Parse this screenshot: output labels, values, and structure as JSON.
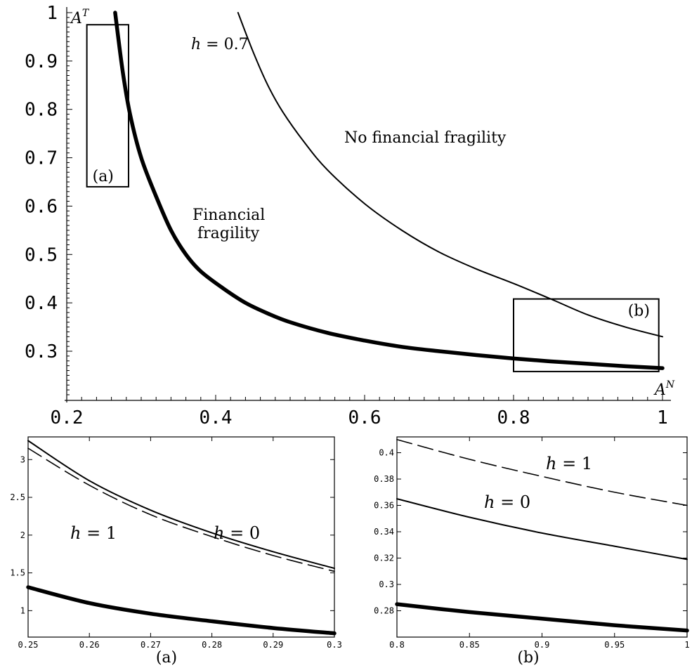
{
  "chart_data": [
    {
      "id": "main",
      "type": "line",
      "xlabel": "A^N",
      "ylabel": "A^T",
      "xlim": [
        0.2,
        1
      ],
      "ylim": [
        0.2,
        1
      ],
      "xticks": [
        0.2,
        0.4,
        0.6,
        0.8,
        1
      ],
      "xtick_labels": [
        "0.2",
        "0.4",
        "0.6",
        "0.8",
        "1"
      ],
      "yticks": [
        0.3,
        0.4,
        0.5,
        0.6,
        0.7,
        0.8,
        0.9,
        1
      ],
      "ytick_labels": [
        "0.3",
        "0.4",
        "0.5",
        "0.6",
        "0.7",
        "0.8",
        "0.9",
        "1"
      ],
      "series": [
        {
          "style": "thick",
          "x": [
            0.265,
            0.275,
            0.285,
            0.3,
            0.32,
            0.34,
            0.36,
            0.38,
            0.41,
            0.44,
            0.47,
            0.5,
            0.55,
            0.6,
            0.65,
            0.7,
            0.75,
            0.8,
            0.85,
            0.9,
            0.95,
            1.0
          ],
          "y": [
            1.0,
            0.88,
            0.79,
            0.7,
            0.62,
            0.55,
            0.5,
            0.465,
            0.43,
            0.4,
            0.378,
            0.36,
            0.338,
            0.322,
            0.309,
            0.3,
            0.292,
            0.285,
            0.279,
            0.274,
            0.269,
            0.265
          ]
        },
        {
          "style": "thin",
          "x": [
            0.43,
            0.45,
            0.47,
            0.49,
            0.52,
            0.55,
            0.6,
            0.65,
            0.7,
            0.75,
            0.8,
            0.85,
            0.9,
            0.95,
            1.0
          ],
          "y": [
            1.0,
            0.92,
            0.85,
            0.795,
            0.73,
            0.675,
            0.605,
            0.55,
            0.505,
            0.47,
            0.44,
            0.408,
            0.375,
            0.35,
            0.33
          ]
        }
      ],
      "annotations": [
        "h = 0.7",
        "No financial fragility",
        "Financial",
        "fragility"
      ],
      "boxes": [
        {
          "label": "(a)",
          "x": [
            0.227,
            0.283
          ],
          "y": [
            0.64,
            0.975
          ]
        },
        {
          "label": "(b)",
          "x": [
            0.8,
            0.995
          ],
          "y": [
            0.258,
            0.408
          ]
        }
      ]
    },
    {
      "id": "inset-a",
      "type": "line",
      "caption": "(a)",
      "xlim": [
        0.25,
        0.3
      ],
      "ylim": [
        0.65,
        3.3
      ],
      "xticks": [
        0.25,
        0.26,
        0.27,
        0.28,
        0.29,
        0.3
      ],
      "xtick_labels": [
        "0.25",
        "0.26",
        "0.27",
        "0.28",
        "0.29",
        "0.3"
      ],
      "yticks": [
        1,
        1.5,
        2,
        2.5,
        3
      ],
      "ytick_labels": [
        "1",
        "1.5",
        "2",
        "2.5",
        "3"
      ],
      "series": [
        {
          "style": "thin",
          "x": [
            0.25,
            0.26,
            0.27,
            0.28,
            0.29,
            0.3
          ],
          "y": [
            3.25,
            2.72,
            2.33,
            2.03,
            1.78,
            1.56
          ]
        },
        {
          "style": "dashed",
          "x": [
            0.25,
            0.26,
            0.27,
            0.28,
            0.29,
            0.3
          ],
          "y": [
            3.15,
            2.66,
            2.27,
            1.98,
            1.73,
            1.52
          ]
        },
        {
          "style": "thick",
          "x": [
            0.25,
            0.26,
            0.27,
            0.28,
            0.29,
            0.3
          ],
          "y": [
            1.31,
            1.1,
            0.96,
            0.86,
            0.77,
            0.7
          ]
        }
      ],
      "annotations": [
        "h = 1",
        "h = 0"
      ]
    },
    {
      "id": "inset-b",
      "type": "line",
      "caption": "(b)",
      "xlim": [
        0.8,
        1.0
      ],
      "ylim": [
        0.26,
        0.412
      ],
      "xticks": [
        0.8,
        0.85,
        0.9,
        0.95,
        1
      ],
      "xtick_labels": [
        "0.8",
        "0.85",
        "0.9",
        "0.95",
        "1"
      ],
      "yticks": [
        0.28,
        0.3,
        0.32,
        0.34,
        0.36,
        0.38,
        0.4
      ],
      "ytick_labels": [
        "0.28",
        "0.3",
        "0.32",
        "0.34",
        "0.36",
        "0.38",
        "0.4"
      ],
      "series": [
        {
          "style": "dashed",
          "x": [
            0.8,
            0.85,
            0.9,
            0.95,
            1.0
          ],
          "y": [
            0.41,
            0.395,
            0.382,
            0.37,
            0.36
          ]
        },
        {
          "style": "thin",
          "x": [
            0.8,
            0.85,
            0.9,
            0.95,
            1.0
          ],
          "y": [
            0.365,
            0.351,
            0.339,
            0.329,
            0.319
          ]
        },
        {
          "style": "thick",
          "x": [
            0.8,
            0.85,
            0.9,
            0.95,
            1.0
          ],
          "y": [
            0.285,
            0.279,
            0.274,
            0.269,
            0.265
          ]
        }
      ],
      "annotations": [
        "h = 1",
        "h = 0"
      ]
    }
  ]
}
